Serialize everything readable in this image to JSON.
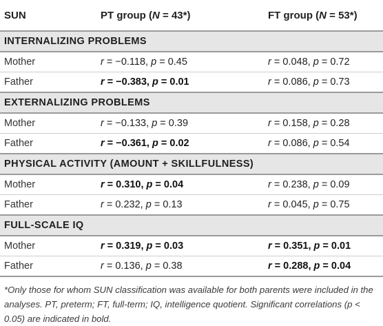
{
  "header": {
    "col1": "SUN",
    "col2": "PT group (N = 43*)",
    "col3": "FT group (N = 53*)"
  },
  "sections": [
    {
      "title": "INTERNALIZING PROBLEMS",
      "rows": [
        {
          "label": "Mother",
          "pt": "r = −0.118, p = 0.45",
          "pt_bold": false,
          "ft": "r = 0.048, p = 0.72",
          "ft_bold": false
        },
        {
          "label": "Father",
          "pt": "r = −0.383, p = 0.01",
          "pt_bold": true,
          "ft": "r = 0.086, p = 0.73",
          "ft_bold": false
        }
      ]
    },
    {
      "title": "EXTERNALIZING PROBLEMS",
      "rows": [
        {
          "label": "Mother",
          "pt": "r = −0.133, p = 0.39",
          "pt_bold": false,
          "ft": "r = 0.158, p = 0.28",
          "ft_bold": false
        },
        {
          "label": "Father",
          "pt": "r = −0.361, p = 0.02",
          "pt_bold": true,
          "ft": "r = 0.086, p = 0.54",
          "ft_bold": false
        }
      ]
    },
    {
      "title": "PHYSICAL ACTIVITY (AMOUNT + SKILLFULNESS)",
      "rows": [
        {
          "label": "Mother",
          "pt": "r = 0.310, p = 0.04",
          "pt_bold": true,
          "ft": "r = 0.238, p = 0.09",
          "ft_bold": false
        },
        {
          "label": "Father",
          "pt": "r = 0.232, p = 0.13",
          "pt_bold": false,
          "ft": "r = 0.045, p = 0.75",
          "ft_bold": false
        }
      ]
    },
    {
      "title": "FULL-SCALE IQ",
      "rows": [
        {
          "label": "Mother",
          "pt": "r = 0.319, p = 0.03",
          "pt_bold": true,
          "ft": "r = 0.351, p = 0.01",
          "ft_bold": true
        },
        {
          "label": "Father",
          "pt": "r = 0.136, p = 0.38",
          "pt_bold": false,
          "ft": "r = 0.288, p = 0.04",
          "ft_bold": true
        }
      ]
    }
  ],
  "footnote": "*Only those for whom SUN classification was available for both parents were included in the analyses. PT, preterm; FT, full-term; IQ, intelligence quotient. Significant correlations (p < 0.05) are indicated in bold."
}
